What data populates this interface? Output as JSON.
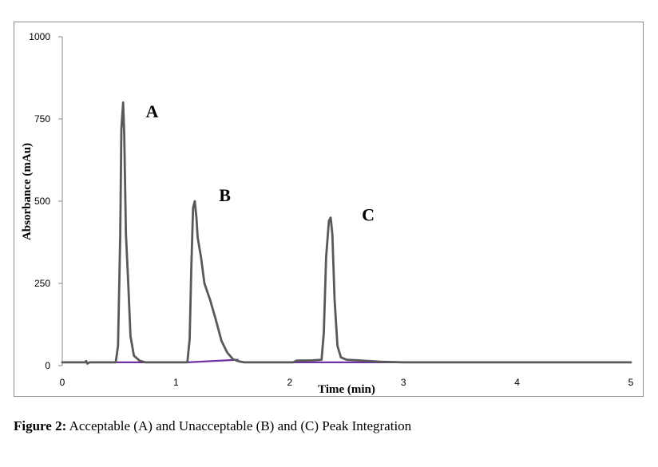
{
  "chart_data": {
    "type": "line",
    "xlabel": "Time (min)",
    "ylabel": "Absorbance (mAu)",
    "xlim": [
      0,
      5
    ],
    "ylim": [
      0,
      1000
    ],
    "x_ticks": [
      0,
      1,
      2,
      3,
      4,
      5
    ],
    "y_ticks": [
      0,
      250,
      500,
      750,
      1000
    ],
    "grid": false,
    "series": [
      {
        "color": "#595959",
        "points": [
          [
            0,
            10
          ],
          [
            0.2,
            10
          ],
          [
            0.21,
            14
          ],
          [
            0.22,
            6
          ],
          [
            0.24,
            10
          ],
          [
            0.47,
            10
          ],
          [
            0.49,
            60
          ],
          [
            0.51,
            400
          ],
          [
            0.52,
            720
          ],
          [
            0.535,
            800
          ],
          [
            0.545,
            700
          ],
          [
            0.56,
            400
          ],
          [
            0.58,
            250
          ],
          [
            0.6,
            90
          ],
          [
            0.63,
            30
          ],
          [
            0.68,
            15
          ],
          [
            0.73,
            10
          ],
          [
            1.1,
            10
          ],
          [
            1.12,
            80
          ],
          [
            1.135,
            300
          ],
          [
            1.15,
            480
          ],
          [
            1.165,
            500
          ],
          [
            1.18,
            450
          ],
          [
            1.19,
            390
          ],
          [
            1.22,
            330
          ],
          [
            1.25,
            250
          ],
          [
            1.3,
            200
          ],
          [
            1.35,
            140
          ],
          [
            1.4,
            75
          ],
          [
            1.45,
            40
          ],
          [
            1.5,
            20
          ],
          [
            1.55,
            13
          ],
          [
            1.6,
            10
          ],
          [
            2.03,
            10
          ],
          [
            2.06,
            15
          ],
          [
            2.2,
            16
          ],
          [
            2.28,
            18
          ],
          [
            2.3,
            100
          ],
          [
            2.32,
            330
          ],
          [
            2.345,
            440
          ],
          [
            2.36,
            450
          ],
          [
            2.375,
            400
          ],
          [
            2.395,
            200
          ],
          [
            2.42,
            60
          ],
          [
            2.45,
            25
          ],
          [
            2.5,
            18
          ],
          [
            2.6,
            16
          ],
          [
            2.8,
            12
          ],
          [
            3.0,
            10
          ],
          [
            5.0,
            10
          ]
        ]
      }
    ],
    "baselines": [
      {
        "color": "#7030a0",
        "points": [
          [
            0.47,
            10
          ],
          [
            0.73,
            10
          ]
        ]
      },
      {
        "color": "#7030a0",
        "points": [
          [
            1.1,
            10
          ],
          [
            1.55,
            18
          ]
        ]
      },
      {
        "color": "#7030a0",
        "points": [
          [
            2.03,
            10
          ],
          [
            3.0,
            10
          ]
        ]
      }
    ],
    "annotations": [
      {
        "text": "A",
        "x": 0.79,
        "y": 755
      },
      {
        "text": "B",
        "x": 1.43,
        "y": 500
      },
      {
        "text": "C",
        "x": 2.69,
        "y": 441
      }
    ]
  },
  "caption": {
    "label": "Figure 2:",
    "text": " Acceptable (A) and Unacceptable (B) and (C) Peak Integration"
  }
}
